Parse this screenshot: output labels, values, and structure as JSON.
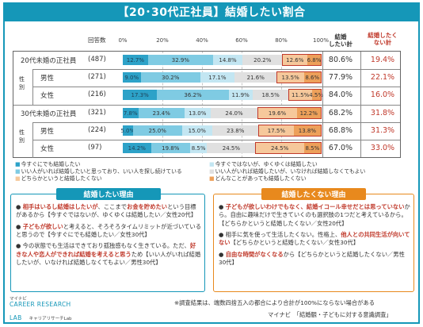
{
  "title": "【20･30代正社員】結婚したい割合",
  "colors": {
    "accent": "#1597b8",
    "orange": "#e8891d",
    "negative": "#c0392b",
    "seg": [
      "#2da2c8",
      "#7fcbe3",
      "#c3e6f2",
      "#e0e0e0",
      "#f6c89b",
      "#eda05a"
    ]
  },
  "chart_data": {
    "type": "bar",
    "orientation": "horizontal-stacked-100",
    "xlim": [
      0,
      100
    ],
    "x_ticks": [
      "0%",
      "20%",
      "40%",
      "60%",
      "80%",
      "100%"
    ],
    "count_header": "回答数",
    "categories": [
      "20代未婚の正社員",
      "男性",
      "女性",
      "30代未婚の正社員",
      "男性",
      "女性"
    ],
    "counts": [
      "(487)",
      "(271)",
      "(216)",
      "(321)",
      "(224)",
      "(97)"
    ],
    "group_labels": [
      "性別",
      "性別"
    ],
    "series": [
      {
        "name": "今すぐにでも結婚したい",
        "values": [
          12.7,
          9.0,
          17.3,
          7.8,
          5.0,
          14.2
        ]
      },
      {
        "name": "いい人がいれば結婚したいと思っており、いい人を探し続けている",
        "values": [
          32.9,
          30.2,
          36.2,
          23.4,
          25.0,
          19.8
        ]
      },
      {
        "name": "今すぐではないが、ゆくゆくは結婚したい",
        "values": [
          14.8,
          17.1,
          11.9,
          13.0,
          15.0,
          8.5
        ]
      },
      {
        "name": "いい人がいれば結婚したいが、いなければ結婚しなくてもよい",
        "values": [
          20.2,
          21.6,
          18.5,
          24.0,
          23.8,
          24.5
        ]
      },
      {
        "name": "どちらかというと結婚したくない",
        "values": [
          12.6,
          13.5,
          11.5,
          19.6,
          17.5,
          24.5
        ]
      },
      {
        "name": "どんなことがあっても結婚したくない",
        "values": [
          6.8,
          8.6,
          4.5,
          12.2,
          13.8,
          8.5
        ]
      }
    ],
    "label_texts": [
      [
        "12.7%",
        "32.9%",
        "14.8%",
        "20.2%",
        "12.6%",
        "6.8%"
      ],
      [
        "9.0%",
        "30.2%",
        "17.1%",
        "21.6%",
        "13.5%",
        "8.6%"
      ],
      [
        "17.3%",
        "36.2%",
        "11.9%",
        "18.5%",
        "11.5%",
        "4.5%"
      ],
      [
        "7.8%",
        "23.4%",
        "13.0%",
        "24.0%",
        "19.6%",
        "12.2%"
      ],
      [
        "5.0%",
        "25.0%",
        "15.0%",
        "23.8%",
        "17.5%",
        "13.8%"
      ],
      [
        "14.2%",
        "19.8%",
        "8.5%",
        "24.5%",
        "24.5%",
        "8.5%"
      ]
    ],
    "summary_headers": {
      "positive": "結婚\nしたい計",
      "negative": "結婚したく\nない計"
    },
    "positive_total": [
      "80.6%",
      "77.9%",
      "84.0%",
      "68.2%",
      "68.8%",
      "67.0%"
    ],
    "negative_total": [
      "19.4%",
      "22.1%",
      "16.0%",
      "31.8%",
      "31.3%",
      "33.0%"
    ]
  },
  "panels": {
    "left": {
      "title": "結婚したい理由",
      "items": [
        {
          "parts": [
            {
              "t": "● ",
              "b": false
            },
            {
              "t": "相手はいるし結婚はしたいが",
              "b": true
            },
            {
              "t": "、ここまで",
              "b": false
            },
            {
              "t": "お金を貯めたい",
              "b": true
            },
            {
              "t": "という目標があるから【今すぐではないが、ゆくゆくは結婚したい／女性20代】",
              "b": false
            }
          ]
        },
        {
          "parts": [
            {
              "t": "● ",
              "b": false
            },
            {
              "t": "子どもが欲しい",
              "b": true
            },
            {
              "t": "と考えると、そろそろタイムリミットが近づいていると思うので【今すぐにでも結婚したい／女性30代】",
              "b": false
            }
          ]
        },
        {
          "parts": [
            {
              "t": "● 今の状態でも生活はできており孤独感もなく生きている。ただ、",
              "b": false
            },
            {
              "t": "好きな人や恋人ができれば結婚を考えると思う",
              "b": true
            },
            {
              "t": "ため【いい人がいれば結婚したいが、いなければ結婚しなくてもよい／男性30代】",
              "b": false
            }
          ]
        }
      ]
    },
    "right": {
      "title": "結婚したくない理由",
      "items": [
        {
          "parts": [
            {
              "t": "● ",
              "b": false
            },
            {
              "t": "子どもが欲しいわけでもなく、結婚イコール幸せだとは思っていない",
              "b": true
            },
            {
              "t": "から。自由に趣味だけで生きていくのも選択肢の1つだと考えているから。【どちらかというと結婚したくない／女性20代】",
              "b": false
            }
          ]
        },
        {
          "parts": [
            {
              "t": "● 相手に気を使って生活したくない。性格上、",
              "b": false
            },
            {
              "t": "他人との共同生活が向いてない",
              "b": true
            },
            {
              "t": "【どちらかというと結婚したくない／女性30代】",
              "b": false
            }
          ]
        },
        {
          "parts": [
            {
              "t": "● ",
              "b": false
            },
            {
              "t": "自由な時間がなくなる",
              "b": true
            },
            {
              "t": "から【どちらかというと結婚したくない／男性30代】",
              "b": false
            }
          ]
        }
      ]
    }
  },
  "footer": {
    "logo_top": "マイナビ",
    "logo_line1": "CAREER RESEARCH",
    "logo_line2": "LAB",
    "logo_sub": "キャリアリサーチLab",
    "note": "※調査結果は、端数四捨五入の都合により合計が100%にならない場合がある",
    "source": "マイナビ　「結婚観・子どもに対する意識調査」"
  }
}
